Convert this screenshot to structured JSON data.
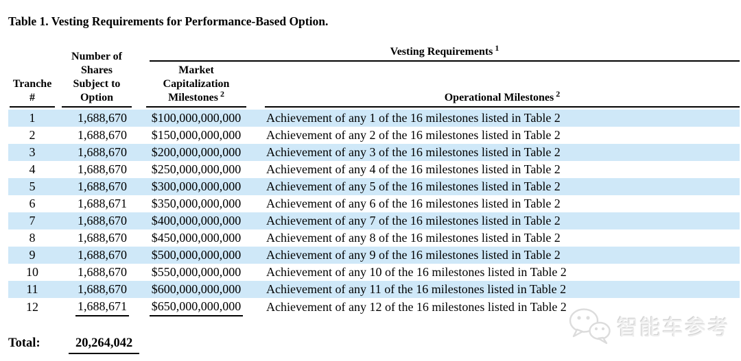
{
  "title": "Table 1. Vesting Requirements for Performance-Based Option.",
  "table": {
    "group_header": {
      "label": "Vesting Requirements",
      "footnote": "1"
    },
    "columns": {
      "tranche": {
        "line1": "Tranche",
        "line2": "#"
      },
      "shares": {
        "line1": "Number of",
        "line2": "Shares",
        "line3": "Subject to",
        "line4": "Option"
      },
      "market_cap": {
        "line1": "Market",
        "line2": "Capitalization",
        "line3": "Milestones",
        "footnote": "2"
      },
      "operational": {
        "label": "Operational Milestones",
        "footnote": "2"
      }
    },
    "rows": [
      {
        "tranche": "1",
        "shares": "1,688,670",
        "market_cap": "$100,000,000,000",
        "milestone": "Achievement of any 1 of the 16 milestones listed in Table 2"
      },
      {
        "tranche": "2",
        "shares": "1,688,670",
        "market_cap": "$150,000,000,000",
        "milestone": "Achievement of any 2 of the 16 milestones listed in Table 2"
      },
      {
        "tranche": "3",
        "shares": "1,688,670",
        "market_cap": "$200,000,000,000",
        "milestone": "Achievement of any 3 of the 16 milestones listed in Table 2"
      },
      {
        "tranche": "4",
        "shares": "1,688,670",
        "market_cap": "$250,000,000,000",
        "milestone": "Achievement of any 4 of the 16 milestones listed in Table 2"
      },
      {
        "tranche": "5",
        "shares": "1,688,670",
        "market_cap": "$300,000,000,000",
        "milestone": "Achievement of any 5 of the 16 milestones listed in Table 2"
      },
      {
        "tranche": "6",
        "shares": "1,688,671",
        "market_cap": "$350,000,000,000",
        "milestone": "Achievement of any 6 of the 16 milestones listed in Table 2"
      },
      {
        "tranche": "7",
        "shares": "1,688,670",
        "market_cap": "$400,000,000,000",
        "milestone": "Achievement of any 7 of the 16 milestones listed in Table 2"
      },
      {
        "tranche": "8",
        "shares": "1,688,670",
        "market_cap": "$450,000,000,000",
        "milestone": "Achievement of any 8 of the 16 milestones listed in Table 2"
      },
      {
        "tranche": "9",
        "shares": "1,688,670",
        "market_cap": "$500,000,000,000",
        "milestone": "Achievement of any 9 of the 16 milestones listed in Table 2"
      },
      {
        "tranche": "10",
        "shares": "1,688,670",
        "market_cap": "$550,000,000,000",
        "milestone": "Achievement of any 10 of the 16 milestones listed in Table 2"
      },
      {
        "tranche": "11",
        "shares": "1,688,670",
        "market_cap": "$600,000,000,000",
        "milestone": "Achievement of any 11 of the 16 milestones listed in Table 2"
      },
      {
        "tranche": "12",
        "shares": "1,688,671",
        "market_cap": "$650,000,000,000",
        "milestone": "Achievement of any 12 of the 16 milestones listed in Table 2"
      }
    ],
    "total": {
      "label": "Total:",
      "value": "20,264,042"
    }
  },
  "watermark": {
    "text": "智能车参考",
    "logo": "wechat-logo-icon"
  },
  "colors": {
    "row_highlight": "#cfe8f8",
    "text": "#000000",
    "watermark": "#ededed"
  }
}
